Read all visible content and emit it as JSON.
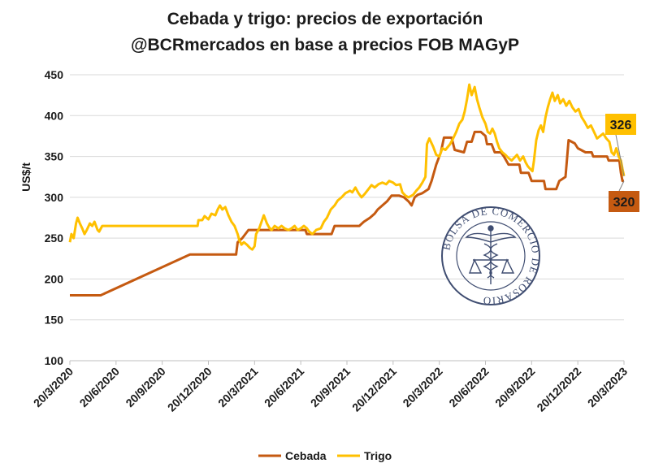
{
  "chart_data": {
    "type": "line",
    "title": "Cebada y trigo: precios de exportación",
    "subtitle": "@BCRmercados en base a precios FOB MAGyP",
    "ylabel": "US$/t",
    "xlabel": "",
    "ylim": [
      100,
      450
    ],
    "yticks": [
      100,
      150,
      200,
      250,
      300,
      350,
      400,
      450
    ],
    "xlim": [
      0,
      36
    ],
    "xticks": [
      {
        "x": 0,
        "label": "20/3/2020"
      },
      {
        "x": 3,
        "label": "20/6/2020"
      },
      {
        "x": 6,
        "label": "20/9/2020"
      },
      {
        "x": 9,
        "label": "20/12/2020"
      },
      {
        "x": 12,
        "label": "20/3/2021"
      },
      {
        "x": 15,
        "label": "20/6/2021"
      },
      {
        "x": 18,
        "label": "20/9/2021"
      },
      {
        "x": 21,
        "label": "20/12/2021"
      },
      {
        "x": 24,
        "label": "20/3/2022"
      },
      {
        "x": 27,
        "label": "20/6/2022"
      },
      {
        "x": 30,
        "label": "20/9/2022"
      },
      {
        "x": 33,
        "label": "20/12/2022"
      },
      {
        "x": 36,
        "label": "20/3/2023"
      }
    ],
    "grid": true,
    "legend_position": "bottom",
    "series": [
      {
        "name": "Cebada",
        "color": "#c55a11",
        "points": [
          [
            0,
            180
          ],
          [
            2,
            180
          ],
          [
            7.8,
            230
          ],
          [
            10.8,
            230
          ],
          [
            10.9,
            245
          ],
          [
            11.2,
            250
          ],
          [
            11.4,
            255
          ],
          [
            11.6,
            260
          ],
          [
            13,
            260
          ],
          [
            14,
            260
          ],
          [
            15.3,
            260
          ],
          [
            15.4,
            255
          ],
          [
            17,
            255
          ],
          [
            17.2,
            265
          ],
          [
            18.8,
            265
          ],
          [
            19.1,
            270
          ],
          [
            19.5,
            275
          ],
          [
            19.8,
            280
          ],
          [
            20.0,
            285
          ],
          [
            20.3,
            290
          ],
          [
            20.6,
            295
          ],
          [
            20.9,
            302
          ],
          [
            21.4,
            302
          ],
          [
            21.7,
            300
          ],
          [
            22.0,
            295
          ],
          [
            22.2,
            290
          ],
          [
            22.4,
            300
          ],
          [
            22.6,
            303
          ],
          [
            22.9,
            305
          ],
          [
            23.3,
            310
          ],
          [
            23.5,
            320
          ],
          [
            23.8,
            340
          ],
          [
            24.1,
            355
          ],
          [
            24.3,
            373
          ],
          [
            24.8,
            373
          ],
          [
            25,
            358
          ],
          [
            25.6,
            355
          ],
          [
            25.8,
            368
          ],
          [
            26.1,
            368
          ],
          [
            26.3,
            380
          ],
          [
            26.7,
            380
          ],
          [
            27,
            375
          ],
          [
            27.1,
            365
          ],
          [
            27.4,
            365
          ],
          [
            27.6,
            355
          ],
          [
            28,
            355
          ],
          [
            28.2,
            350
          ],
          [
            28.5,
            340
          ],
          [
            29.2,
            340
          ],
          [
            29.3,
            330
          ],
          [
            29.8,
            330
          ],
          [
            30,
            320
          ],
          [
            30.8,
            320
          ],
          [
            30.9,
            310
          ],
          [
            31.6,
            310
          ],
          [
            31.8,
            320
          ],
          [
            32.2,
            325
          ],
          [
            32.4,
            370
          ],
          [
            32.8,
            366
          ],
          [
            33.0,
            360
          ],
          [
            33.5,
            355
          ],
          [
            33.9,
            355
          ],
          [
            34.0,
            350
          ],
          [
            34.9,
            350
          ],
          [
            35.0,
            345
          ],
          [
            35.7,
            345
          ],
          [
            35.8,
            330
          ],
          [
            35.9,
            320
          ],
          [
            36.0,
            320
          ]
        ]
      },
      {
        "name": "Trigo",
        "color": "#ffc000",
        "points": [
          [
            0,
            245
          ],
          [
            0.1,
            255
          ],
          [
            0.25,
            250
          ],
          [
            0.4,
            268
          ],
          [
            0.5,
            275
          ],
          [
            0.65,
            268
          ],
          [
            0.8,
            262
          ],
          [
            0.95,
            255
          ],
          [
            1.1,
            260
          ],
          [
            1.3,
            268
          ],
          [
            1.45,
            265
          ],
          [
            1.6,
            270
          ],
          [
            1.8,
            260
          ],
          [
            1.9,
            258
          ],
          [
            2.1,
            265
          ],
          [
            3,
            265
          ],
          [
            5,
            265
          ],
          [
            7,
            265
          ],
          [
            8.3,
            265
          ],
          [
            8.35,
            272
          ],
          [
            8.6,
            272
          ],
          [
            8.75,
            277
          ],
          [
            9,
            273
          ],
          [
            9.2,
            280
          ],
          [
            9.45,
            278
          ],
          [
            9.6,
            285
          ],
          [
            9.75,
            290
          ],
          [
            9.9,
            285
          ],
          [
            10.1,
            288
          ],
          [
            10.3,
            278
          ],
          [
            10.5,
            270
          ],
          [
            10.7,
            265
          ],
          [
            10.9,
            255
          ],
          [
            11,
            248
          ],
          [
            11.15,
            242
          ],
          [
            11.3,
            245
          ],
          [
            11.5,
            242
          ],
          [
            11.7,
            238
          ],
          [
            11.85,
            236
          ],
          [
            12,
            240
          ],
          [
            12.1,
            255
          ],
          [
            12.3,
            262
          ],
          [
            12.45,
            270
          ],
          [
            12.6,
            278
          ],
          [
            12.8,
            268
          ],
          [
            12.95,
            263
          ],
          [
            13.1,
            260
          ],
          [
            13.3,
            265
          ],
          [
            13.55,
            262
          ],
          [
            13.75,
            265
          ],
          [
            13.95,
            262
          ],
          [
            14.2,
            260
          ],
          [
            14.4,
            262
          ],
          [
            14.6,
            265
          ],
          [
            14.8,
            260
          ],
          [
            15,
            262
          ],
          [
            15.2,
            265
          ],
          [
            15.4,
            262
          ],
          [
            15.55,
            258
          ],
          [
            15.75,
            255
          ],
          [
            16,
            260
          ],
          [
            16.3,
            262
          ],
          [
            16.5,
            270
          ],
          [
            16.7,
            275
          ],
          [
            16.95,
            285
          ],
          [
            17.2,
            290
          ],
          [
            17.4,
            296
          ],
          [
            17.65,
            300
          ],
          [
            17.9,
            305
          ],
          [
            18.2,
            308
          ],
          [
            18.35,
            306
          ],
          [
            18.55,
            312
          ],
          [
            18.75,
            305
          ],
          [
            18.95,
            300
          ],
          [
            19.15,
            304
          ],
          [
            19.4,
            310
          ],
          [
            19.6,
            315
          ],
          [
            19.8,
            312
          ],
          [
            20.05,
            316
          ],
          [
            20.3,
            318
          ],
          [
            20.55,
            316
          ],
          [
            20.75,
            320
          ],
          [
            21,
            318
          ],
          [
            21.2,
            315
          ],
          [
            21.45,
            316
          ],
          [
            21.6,
            306
          ],
          [
            21.8,
            302
          ],
          [
            22,
            300
          ],
          [
            22.3,
            303
          ],
          [
            22.5,
            308
          ],
          [
            22.7,
            312
          ],
          [
            22.9,
            318
          ],
          [
            23.1,
            325
          ],
          [
            23.2,
            365
          ],
          [
            23.35,
            372
          ],
          [
            23.6,
            362
          ],
          [
            23.8,
            352
          ],
          [
            24,
            350
          ],
          [
            24.2,
            360
          ],
          [
            24.4,
            358
          ],
          [
            24.7,
            365
          ],
          [
            24.9,
            372
          ],
          [
            25.1,
            380
          ],
          [
            25.3,
            390
          ],
          [
            25.5,
            395
          ],
          [
            25.65,
            405
          ],
          [
            25.8,
            420
          ],
          [
            25.95,
            438
          ],
          [
            26.1,
            425
          ],
          [
            26.3,
            435
          ],
          [
            26.45,
            420
          ],
          [
            26.6,
            410
          ],
          [
            26.8,
            398
          ],
          [
            27,
            390
          ],
          [
            27.15,
            380
          ],
          [
            27.3,
            378
          ],
          [
            27.45,
            384
          ],
          [
            27.6,
            378
          ],
          [
            27.75,
            368
          ],
          [
            27.9,
            360
          ],
          [
            28.1,
            355
          ],
          [
            28.3,
            352
          ],
          [
            28.5,
            348
          ],
          [
            28.7,
            345
          ],
          [
            28.85,
            348
          ],
          [
            29.05,
            352
          ],
          [
            29.25,
            345
          ],
          [
            29.45,
            350
          ],
          [
            29.6,
            343
          ],
          [
            29.75,
            338
          ],
          [
            29.9,
            335
          ],
          [
            30.05,
            332
          ],
          [
            30.15,
            345
          ],
          [
            30.3,
            370
          ],
          [
            30.45,
            382
          ],
          [
            30.6,
            388
          ],
          [
            30.75,
            380
          ],
          [
            30.9,
            398
          ],
          [
            31.05,
            410
          ],
          [
            31.2,
            420
          ],
          [
            31.35,
            428
          ],
          [
            31.5,
            418
          ],
          [
            31.7,
            425
          ],
          [
            31.85,
            415
          ],
          [
            32.05,
            420
          ],
          [
            32.25,
            412
          ],
          [
            32.45,
            418
          ],
          [
            32.65,
            410
          ],
          [
            32.85,
            405
          ],
          [
            33.05,
            408
          ],
          [
            33.25,
            398
          ],
          [
            33.45,
            392
          ],
          [
            33.65,
            385
          ],
          [
            33.85,
            388
          ],
          [
            34.05,
            380
          ],
          [
            34.25,
            372
          ],
          [
            34.45,
            375
          ],
          [
            34.65,
            378
          ],
          [
            34.85,
            372
          ],
          [
            35.05,
            368
          ],
          [
            35.2,
            355
          ],
          [
            35.35,
            352
          ],
          [
            35.5,
            360
          ],
          [
            35.65,
            350
          ],
          [
            35.8,
            345
          ],
          [
            35.9,
            335
          ],
          [
            36,
            326
          ]
        ]
      }
    ],
    "annotations": [
      {
        "series": "Trigo",
        "text": "326",
        "value": 326,
        "fill": "#ffc000"
      },
      {
        "series": "Cebada",
        "text": "320",
        "value": 320,
        "fill": "#c55a11"
      }
    ]
  },
  "watermark": {
    "text": "BOLSA DE COMERCIO DE ROSARIO",
    "color": "#2b3a62"
  }
}
